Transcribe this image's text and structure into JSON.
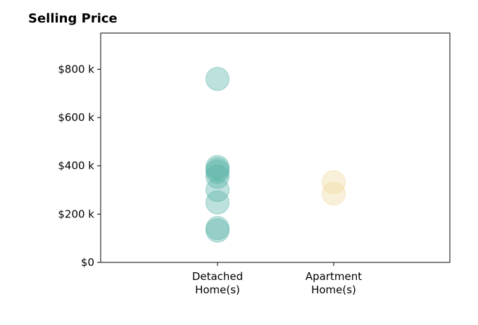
{
  "chart_data": {
    "type": "scatter",
    "title": "Selling Price",
    "xlabel": "",
    "ylabel": "",
    "categories": [
      [
        "Detached",
        "Home(s)"
      ],
      [
        "Apartment",
        "Home(s)"
      ]
    ],
    "ylim": [
      0,
      950000
    ],
    "yticks": [
      0,
      200000,
      400000,
      600000,
      800000
    ],
    "ytick_labels": [
      "$0",
      "$200 k",
      "$400 k",
      "$600 k",
      "$800 k"
    ],
    "grid": false,
    "series": [
      {
        "category_index": 0,
        "color": "#5ab4a8",
        "values": [
          760000,
          395000,
          385000,
          375000,
          355000,
          300000,
          248000,
          142000,
          132000
        ]
      },
      {
        "category_index": 1,
        "color": "#f0d9a0",
        "values": [
          332000,
          285000
        ]
      }
    ]
  }
}
